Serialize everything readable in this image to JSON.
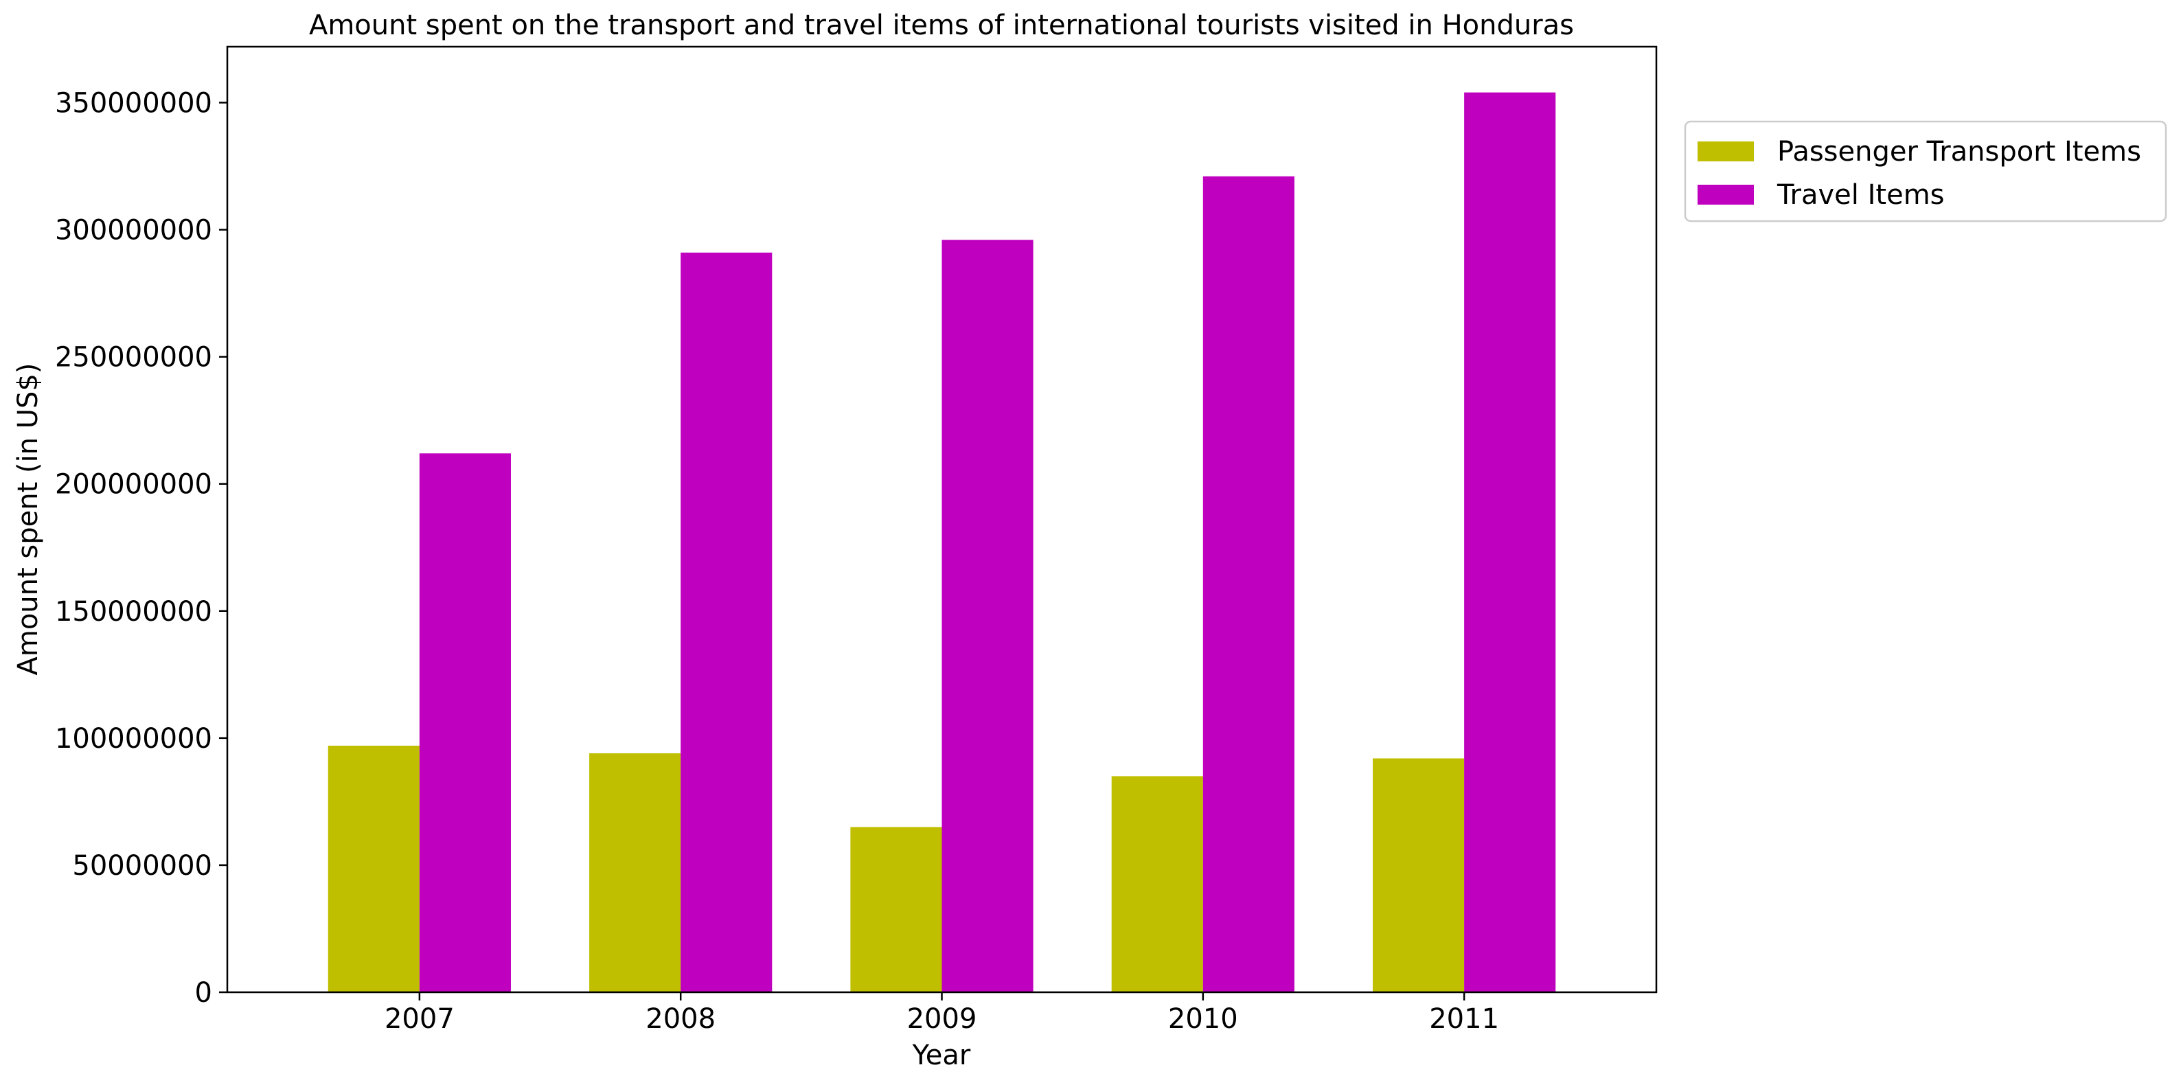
{
  "chart_data": {
    "type": "bar",
    "title": "Amount spent on the transport and travel items of international tourists visited in Honduras",
    "xlabel": "Year",
    "ylabel": "Amount spent (in US$)",
    "categories": [
      "2007",
      "2008",
      "2009",
      "2010",
      "2011"
    ],
    "series": [
      {
        "name": "Passenger Transport Items",
        "color": "#bfbf00",
        "values": [
          97000000,
          94000000,
          65000000,
          85000000,
          92000000
        ]
      },
      {
        "name": "Travel Items",
        "color": "#bf00bf",
        "values": [
          212000000,
          291000000,
          296000000,
          321000000,
          354000000
        ]
      }
    ],
    "ylim": [
      0,
      372000000
    ],
    "yticks": [
      0,
      50000000,
      100000000,
      150000000,
      200000000,
      250000000,
      300000000,
      350000000
    ],
    "ytick_labels": [
      "0",
      "50000000",
      "100000000",
      "150000000",
      "200000000",
      "250000000",
      "300000000",
      "350000000"
    ],
    "grid": false,
    "legend_position": "outside right, top"
  }
}
